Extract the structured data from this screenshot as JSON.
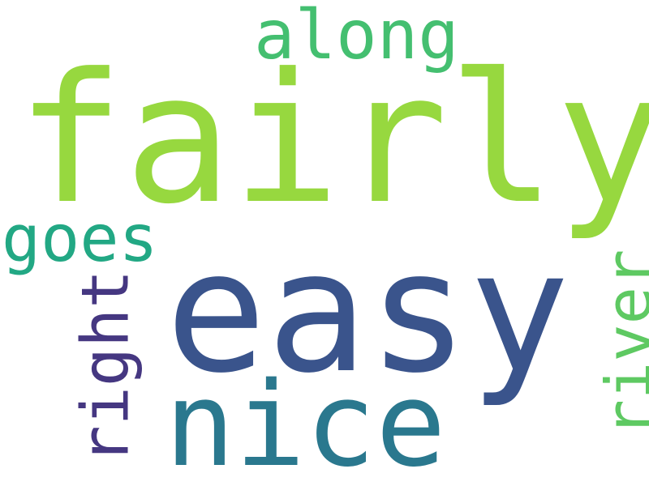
{
  "words": [
    {
      "text": "fairly",
      "color": "#97d83f"
    },
    {
      "text": "easy",
      "color": "#3a548c"
    },
    {
      "text": "nice",
      "color": "#2a788e"
    },
    {
      "text": "along",
      "color": "#44bf70"
    },
    {
      "text": "goes",
      "color": "#22a884"
    },
    {
      "text": "right",
      "color": "#453781"
    },
    {
      "text": "river",
      "color": "#5ec962"
    }
  ]
}
